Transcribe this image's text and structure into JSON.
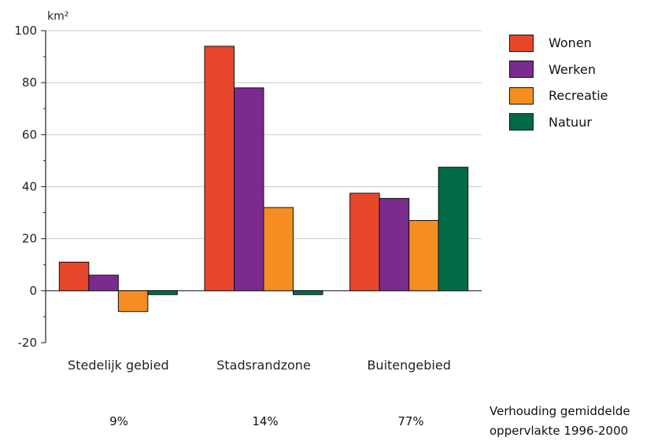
{
  "chart_data": {
    "type": "bar",
    "unit_label": "km²",
    "categories": [
      "Stedelijk gebied",
      "Stadsrandzone",
      "Buitengebied"
    ],
    "series": [
      {
        "name": "Wonen",
        "color": "#e8462a",
        "values": [
          11,
          94,
          37.5
        ]
      },
      {
        "name": "Werken",
        "color": "#7b2a8e",
        "values": [
          6,
          78,
          35.5
        ]
      },
      {
        "name": "Recreatie",
        "color": "#f58d23",
        "values": [
          -8,
          32,
          27
        ]
      },
      {
        "name": "Natuur",
        "color": "#006b46",
        "values": [
          -1.5,
          -1.5,
          47.5
        ]
      }
    ],
    "ylim": [
      -20,
      100
    ],
    "yticks": [
      -20,
      0,
      20,
      40,
      60,
      80,
      100
    ],
    "grid": true,
    "legend": "top-right"
  },
  "shares": [
    "9%",
    "14%",
    "77%"
  ],
  "shares_note": [
    "Verhouding gemiddelde",
    "oppervlakte 1996-2000"
  ]
}
